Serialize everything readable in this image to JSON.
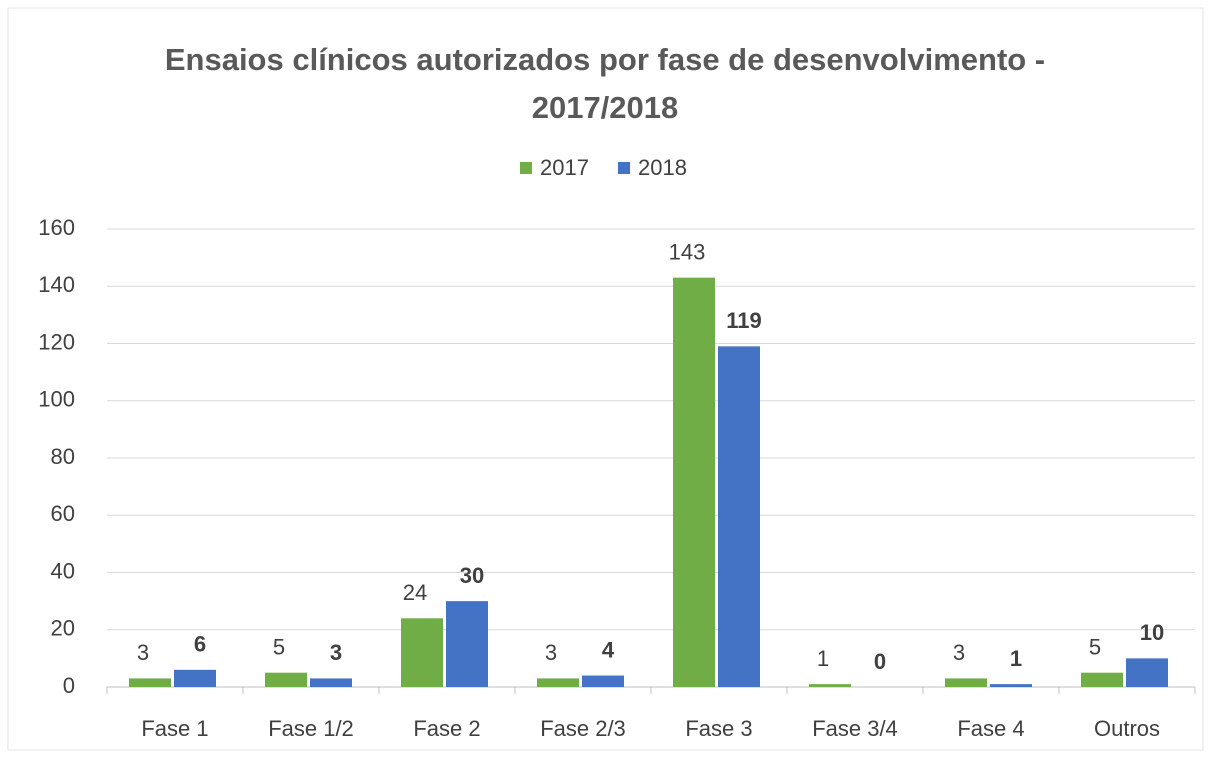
{
  "chart_data": {
    "type": "bar",
    "title": "Ensaios clínicos autorizados por fase de desenvolvimento - 2017/2018",
    "categories": [
      "Fase 1",
      "Fase 1/2",
      "Fase 2",
      "Fase 2/3",
      "Fase 3",
      "Fase 3/4",
      "Fase 4",
      "Outros"
    ],
    "series": [
      {
        "name": "2017",
        "color": "#70ad47",
        "values": [
          3,
          5,
          24,
          3,
          143,
          1,
          3,
          5
        ]
      },
      {
        "name": "2018",
        "color": "#4472c4",
        "values": [
          6,
          3,
          30,
          4,
          119,
          0,
          1,
          10
        ]
      }
    ],
    "ylim": [
      0,
      160
    ],
    "yticks": [
      0,
      20,
      40,
      60,
      80,
      100,
      120,
      140,
      160
    ],
    "grid": true,
    "legend": "top"
  }
}
